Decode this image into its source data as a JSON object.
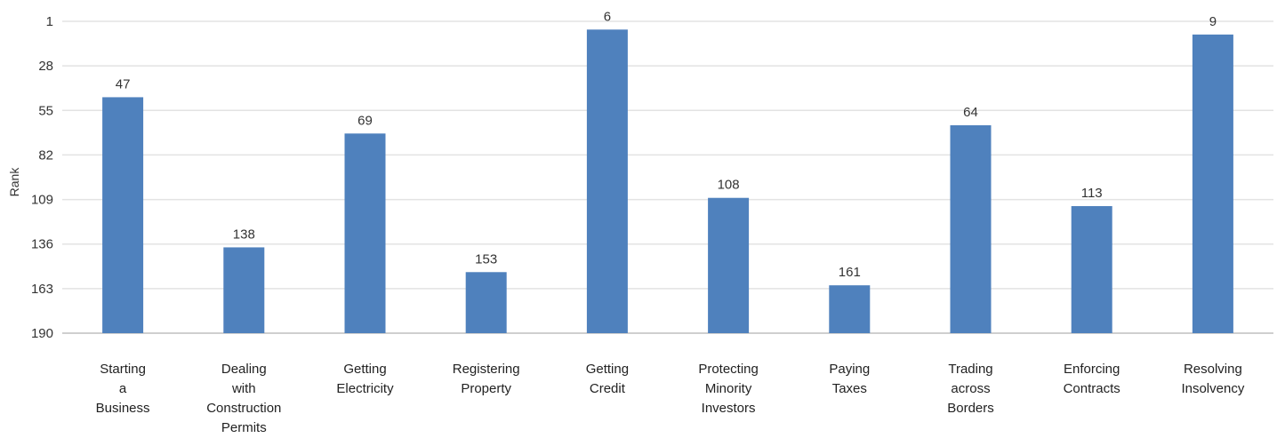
{
  "chart_data": {
    "type": "bar",
    "title": "",
    "xlabel": "",
    "ylabel": "Rank",
    "y_axis_inverted": true,
    "ylim": [
      1,
      190
    ],
    "yticks": [
      1,
      28,
      55,
      82,
      109,
      136,
      163,
      190
    ],
    "grid": true,
    "legend": "none",
    "bar_color": "#4f81bd",
    "categories": [
      [
        "Starting",
        "a",
        "Business"
      ],
      [
        "Dealing",
        "with",
        "Construction",
        "Permits"
      ],
      [
        "Getting",
        "Electricity"
      ],
      [
        "Registering",
        "Property"
      ],
      [
        "Getting",
        "Credit"
      ],
      [
        "Protecting",
        "Minority",
        "Investors"
      ],
      [
        "Paying",
        "Taxes"
      ],
      [
        "Trading",
        "across",
        "Borders"
      ],
      [
        "Enforcing",
        "Contracts"
      ],
      [
        "Resolving",
        "Insolvency"
      ]
    ],
    "values": [
      47,
      138,
      69,
      153,
      6,
      108,
      161,
      64,
      113,
      9
    ]
  }
}
